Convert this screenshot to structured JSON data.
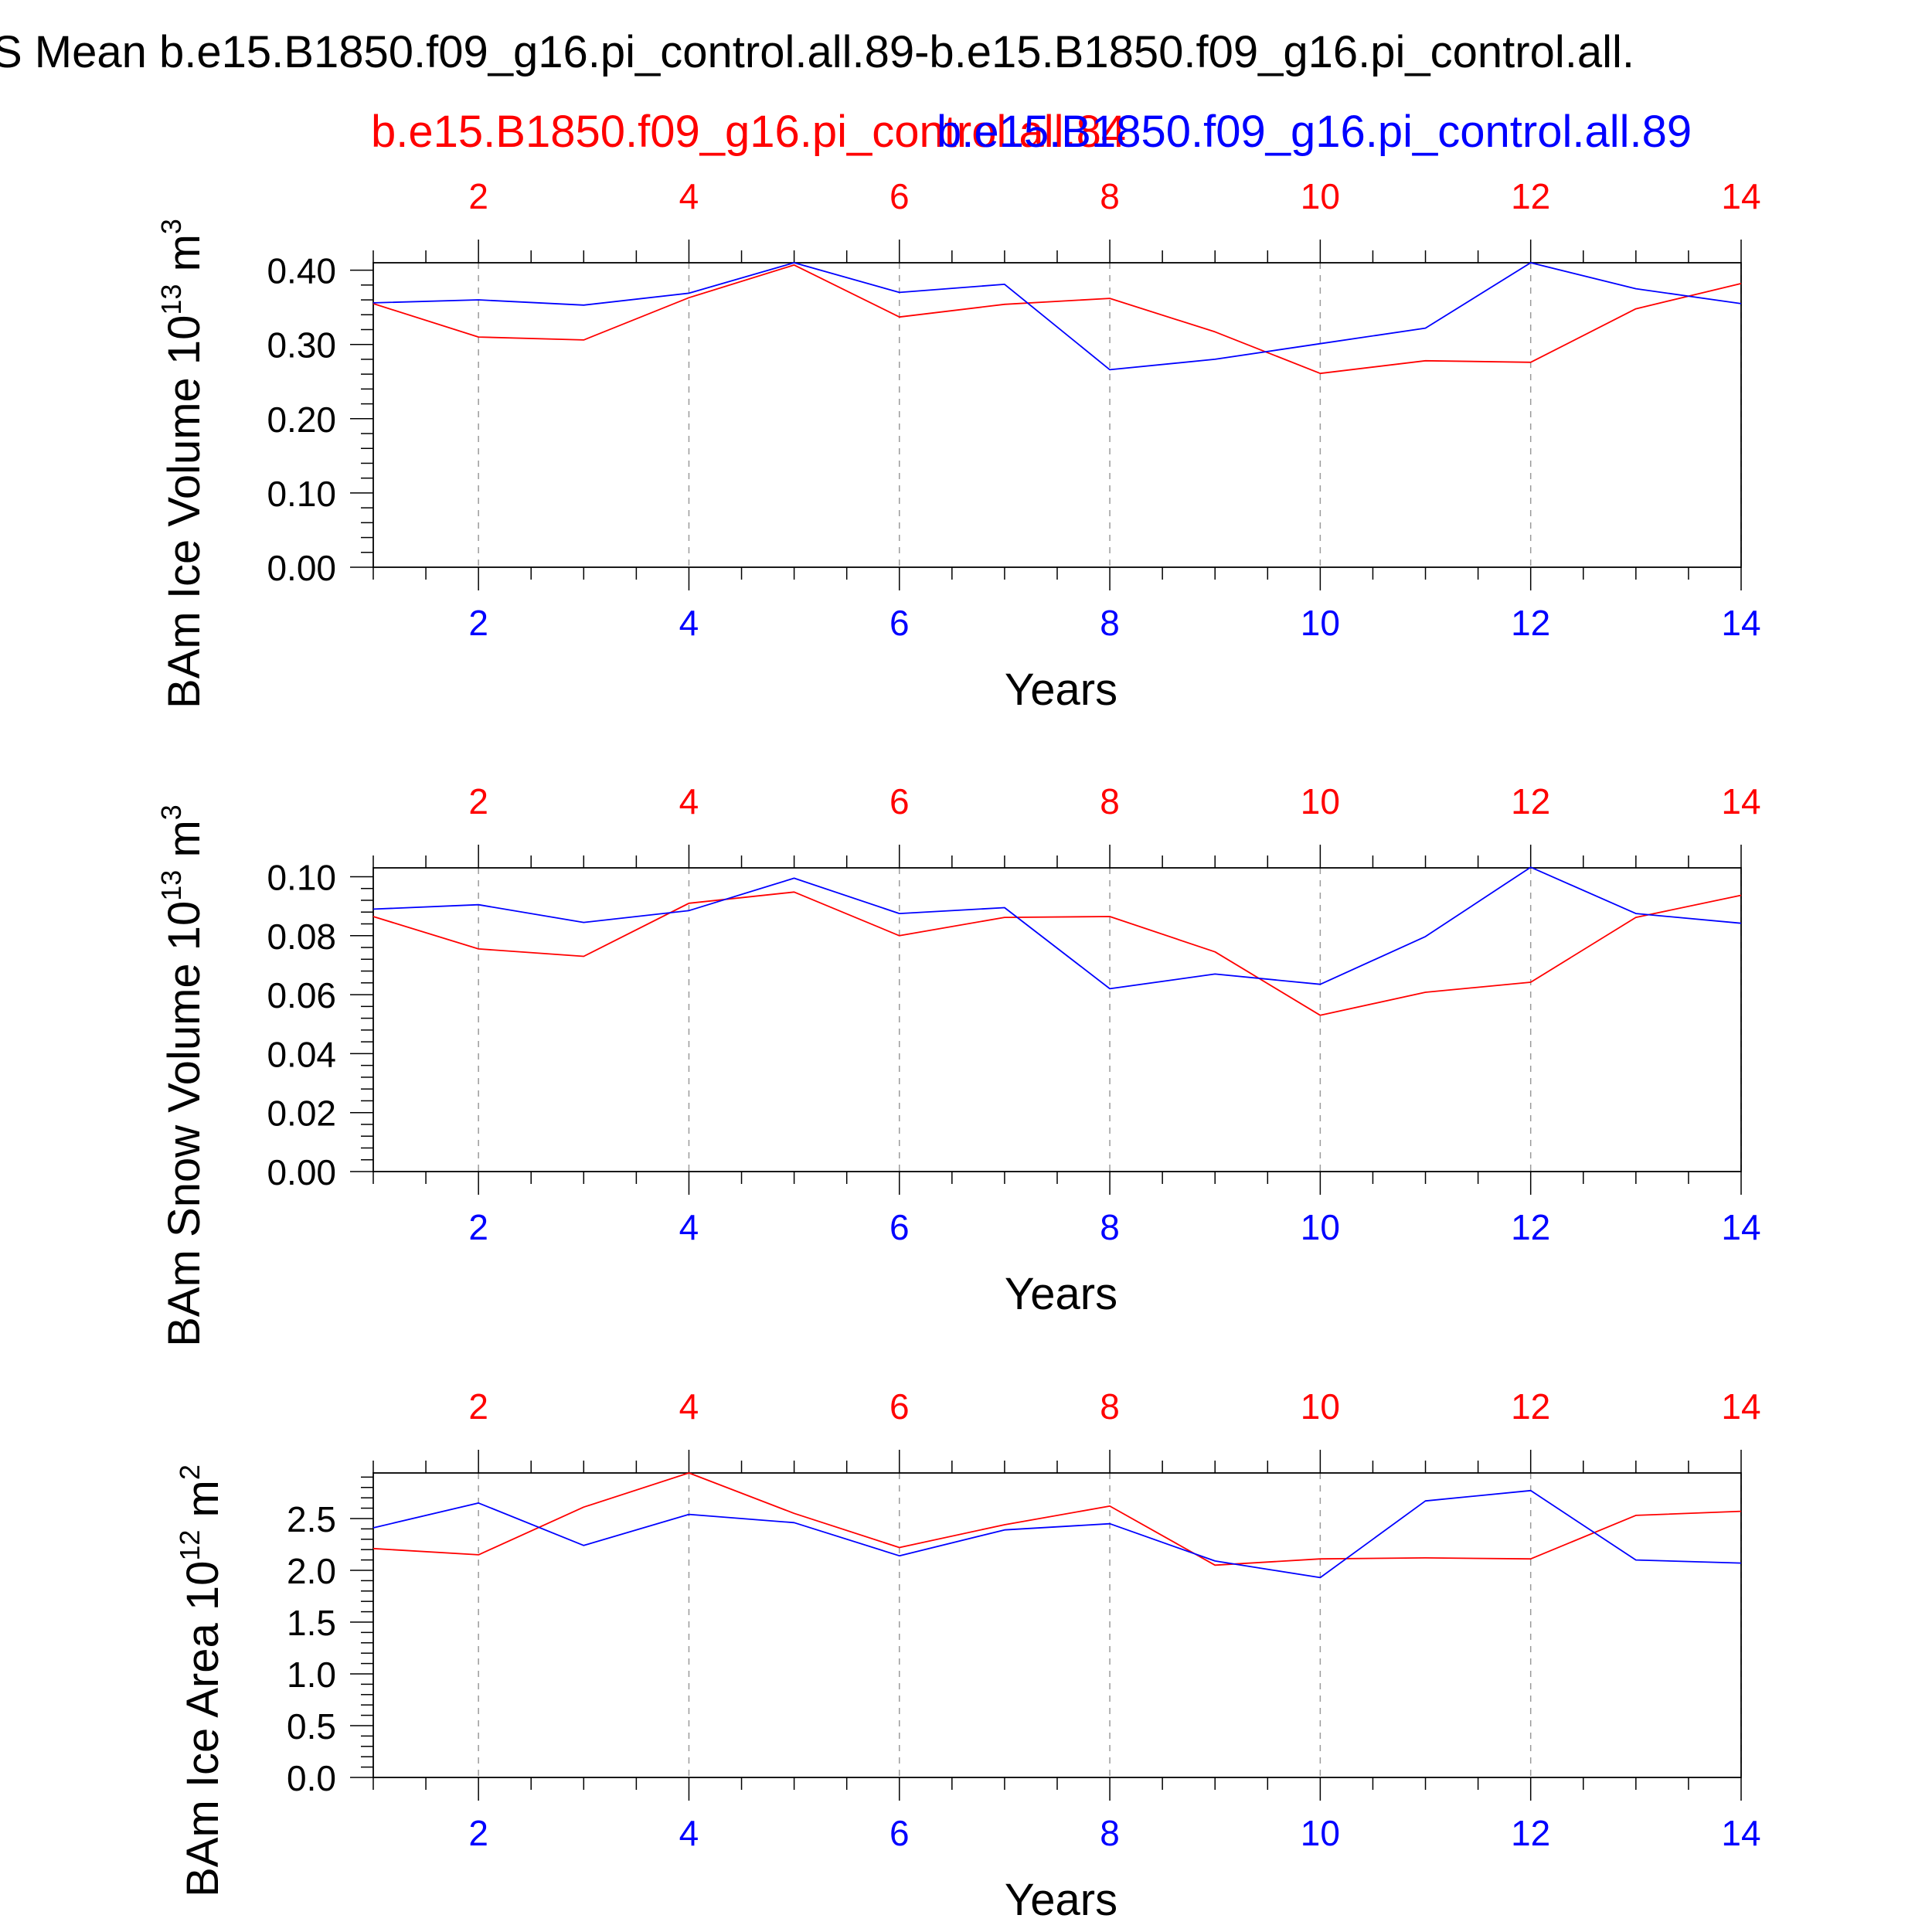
{
  "figure": {
    "title": "S Mean b.e15.B1850.f09_g16.pi_control.all.89-b.e15.B1850.f09_g16.pi_control.all.",
    "legend_red": "b.e15.B1850.f09_g16.pi_control.all.84",
    "legend_blue": "b.e15.B1850.f09_g16.pi_control.all.89",
    "series_colors": {
      "red": "#ff0000",
      "blue": "#0000ff"
    }
  },
  "chart_data": [
    {
      "type": "line",
      "ylabel": "BAm Ice Volume 10",
      "ylabel_exp": "13",
      "ylabel_unit": " m",
      "ylabel_unit_exp": "3",
      "xlabel": "Years",
      "xlim": [
        1,
        14
      ],
      "ylim": [
        0,
        0.41
      ],
      "yticks": [
        "0.00",
        "0.10",
        "0.20",
        "0.30",
        "0.40"
      ],
      "ytick_values": [
        0,
        0.1,
        0.2,
        0.3,
        0.4
      ],
      "xticks": [
        "2",
        "4",
        "6",
        "8",
        "10",
        "12",
        "14"
      ],
      "xtick_values": [
        2,
        4,
        6,
        8,
        10,
        12,
        14
      ],
      "grid": "vertical dashed",
      "x": [
        1,
        2,
        3,
        4,
        5,
        6,
        7,
        8,
        9,
        10,
        11,
        12,
        13,
        14
      ],
      "series": [
        {
          "color": "#ff0000",
          "values": [
            0.355,
            0.31,
            0.306,
            0.363,
            0.407,
            0.337,
            0.354,
            0.362,
            0.317,
            0.261,
            0.278,
            0.276,
            0.348,
            0.382
          ]
        },
        {
          "color": "#0000ff",
          "values": [
            0.356,
            0.36,
            0.353,
            0.369,
            0.41,
            0.37,
            0.381,
            0.266,
            0.28,
            0.301,
            0.322,
            0.41,
            0.375,
            0.355
          ]
        }
      ]
    },
    {
      "type": "line",
      "ylabel": "BAm Snow Volume 10",
      "ylabel_exp": "13",
      "ylabel_unit": " m",
      "ylabel_unit_exp": "3",
      "xlabel": "Years",
      "xlim": [
        1,
        14
      ],
      "ylim": [
        0,
        0.103
      ],
      "yticks": [
        "0.00",
        "0.02",
        "0.04",
        "0.06",
        "0.08",
        "0.10"
      ],
      "ytick_values": [
        0,
        0.02,
        0.04,
        0.06,
        0.08,
        0.1
      ],
      "xticks": [
        "2",
        "4",
        "6",
        "8",
        "10",
        "12",
        "14"
      ],
      "xtick_values": [
        2,
        4,
        6,
        8,
        10,
        12,
        14
      ],
      "grid": "vertical dashed",
      "x": [
        1,
        2,
        3,
        4,
        5,
        6,
        7,
        8,
        9,
        10,
        11,
        12,
        13,
        14
      ],
      "series": [
        {
          "color": "#ff0000",
          "values": [
            0.0865,
            0.0755,
            0.073,
            0.091,
            0.0948,
            0.08,
            0.0862,
            0.0865,
            0.0745,
            0.053,
            0.0608,
            0.0642,
            0.0862,
            0.0937
          ]
        },
        {
          "color": "#0000ff",
          "values": [
            0.089,
            0.0905,
            0.0845,
            0.0885,
            0.0995,
            0.0875,
            0.0895,
            0.062,
            0.067,
            0.0635,
            0.0797,
            0.1032,
            0.0875,
            0.0842
          ]
        }
      ]
    },
    {
      "type": "line",
      "ylabel": "BAm Ice Area 10",
      "ylabel_exp": "12",
      "ylabel_unit": " m",
      "ylabel_unit_exp": "2",
      "xlabel": "Years",
      "xlim": [
        1,
        14
      ],
      "ylim": [
        0,
        2.94
      ],
      "yticks": [
        "0.0",
        "0.5",
        "1.0",
        "1.5",
        "2.0",
        "2.5"
      ],
      "ytick_values": [
        0,
        0.5,
        1.0,
        1.5,
        2.0,
        2.5
      ],
      "xticks": [
        "2",
        "4",
        "6",
        "8",
        "10",
        "12",
        "14"
      ],
      "xtick_values": [
        2,
        4,
        6,
        8,
        10,
        12,
        14
      ],
      "grid": "vertical dashed",
      "x": [
        1,
        2,
        3,
        4,
        5,
        6,
        7,
        8,
        9,
        10,
        11,
        12,
        13,
        14
      ],
      "series": [
        {
          "color": "#ff0000",
          "values": [
            2.21,
            2.15,
            2.61,
            2.94,
            2.55,
            2.22,
            2.44,
            2.62,
            2.05,
            2.11,
            2.12,
            2.11,
            2.53,
            2.57
          ]
        },
        {
          "color": "#0000ff",
          "values": [
            2.41,
            2.65,
            2.24,
            2.54,
            2.46,
            2.14,
            2.39,
            2.45,
            2.09,
            1.93,
            2.67,
            2.77,
            2.1,
            2.07
          ]
        }
      ]
    }
  ]
}
